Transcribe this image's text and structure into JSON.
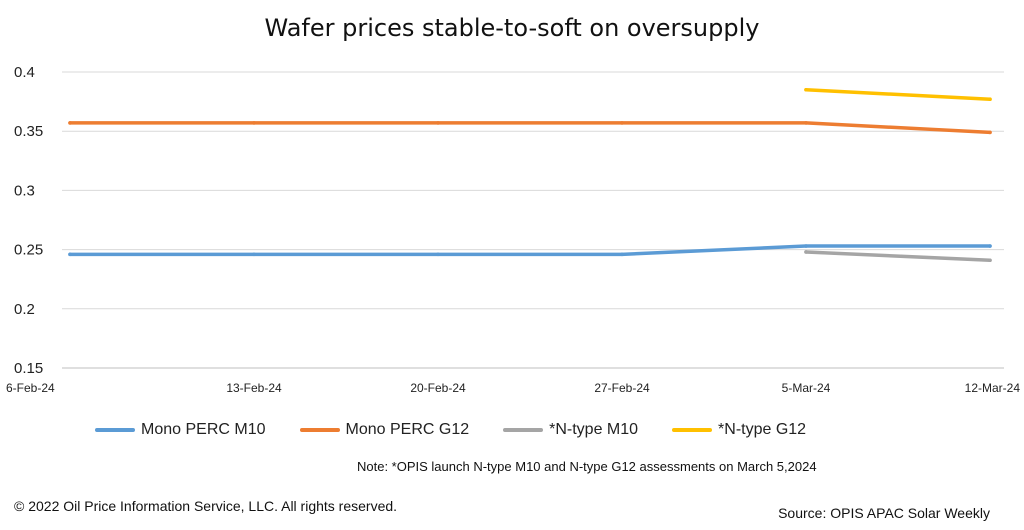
{
  "chart_data": {
    "type": "line",
    "title": "Wafer prices stable-to-soft on oversupply",
    "x": [
      "6-Feb-24",
      "13-Feb-24",
      "20-Feb-24",
      "27-Feb-24",
      "5-Mar-24",
      "12-Mar-24"
    ],
    "ylim": [
      0.15,
      0.4
    ],
    "yticks": [
      "0.4",
      "0.35",
      "0.3",
      "0.25",
      "0.2",
      "0.15"
    ],
    "grid": true,
    "legend_position": "bottom",
    "series": [
      {
        "name": "Mono PERC M10",
        "color": "#5B9BD5",
        "values": [
          0.246,
          0.246,
          0.246,
          0.246,
          0.253,
          0.253
        ]
      },
      {
        "name": "Mono PERC G12",
        "color": "#ED7D31",
        "values": [
          0.357,
          0.357,
          0.357,
          0.357,
          0.357,
          0.349
        ]
      },
      {
        "name": "*N-type M10",
        "color": "#A5A5A5",
        "values": [
          null,
          null,
          null,
          null,
          0.248,
          0.241
        ]
      },
      {
        "name": "*N-type G12",
        "color": "#FFC000",
        "values": [
          null,
          null,
          null,
          null,
          0.385,
          0.377
        ]
      }
    ]
  },
  "note": "Note: *OPIS launch N-type M10 and N-type G12 assessments on March 5,2024",
  "copyright": "© 2022 Oil Price Information Service, LLC. All rights reserved.",
  "source": "Source: OPIS APAC Solar Weekly"
}
